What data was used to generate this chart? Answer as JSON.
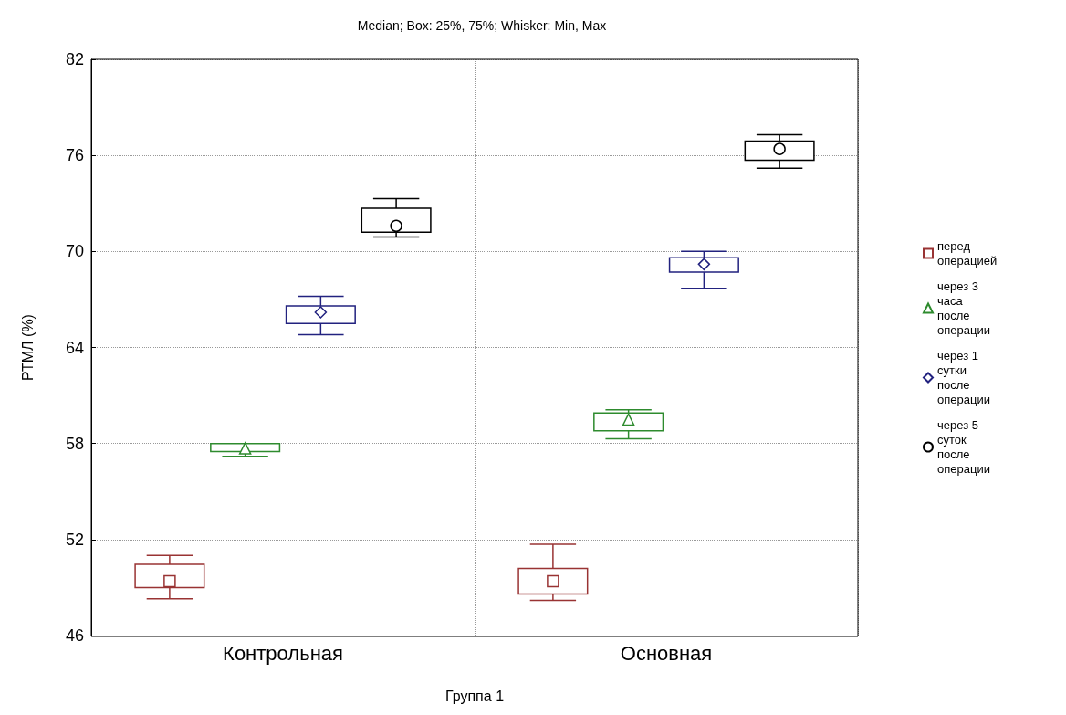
{
  "chart_data": {
    "type": "box",
    "title": "Median; Box: 25%, 75%; Whisker: Min, Max",
    "xlabel": "Группа 1",
    "ylabel": "РТМЛ (%)",
    "categories": [
      "Контрольная",
      "Основная"
    ],
    "ylim": [
      46,
      82
    ],
    "yticks": [
      46,
      52,
      58,
      64,
      70,
      76,
      82
    ],
    "grid": true,
    "legend": "right",
    "series": [
      {
        "name": "перед операцией",
        "color": "#993333",
        "marker": "square",
        "boxes": [
          {
            "low": 48.3,
            "q1": 49.0,
            "median": 49.4,
            "q3": 50.45,
            "high": 51.0
          },
          {
            "low": 48.2,
            "q1": 48.6,
            "median": 49.4,
            "q3": 50.2,
            "high": 51.7
          }
        ]
      },
      {
        "name": "через 3 часа после операции",
        "color": "#2e8b2e",
        "marker": "triangle",
        "boxes": [
          {
            "low": 57.2,
            "q1": 57.5,
            "median": 57.7,
            "q3": 58.0,
            "high": 58.0
          },
          {
            "low": 58.3,
            "q1": 58.8,
            "median": 59.5,
            "q3": 59.9,
            "high": 60.1
          }
        ]
      },
      {
        "name": "через 1 сутки после операции",
        "color": "#22227f",
        "marker": "diamond",
        "boxes": [
          {
            "low": 64.8,
            "q1": 65.5,
            "median": 66.2,
            "q3": 66.6,
            "high": 67.2
          },
          {
            "low": 67.7,
            "q1": 68.7,
            "median": 69.2,
            "q3": 69.6,
            "high": 70.0
          }
        ]
      },
      {
        "name": "через 5 суток после операции",
        "color": "#000000",
        "marker": "circle",
        "boxes": [
          {
            "low": 70.9,
            "q1": 71.2,
            "median": 71.6,
            "q3": 72.7,
            "high": 73.3
          },
          {
            "low": 75.2,
            "q1": 75.7,
            "median": 76.4,
            "q3": 76.9,
            "high": 77.3
          }
        ]
      }
    ]
  }
}
